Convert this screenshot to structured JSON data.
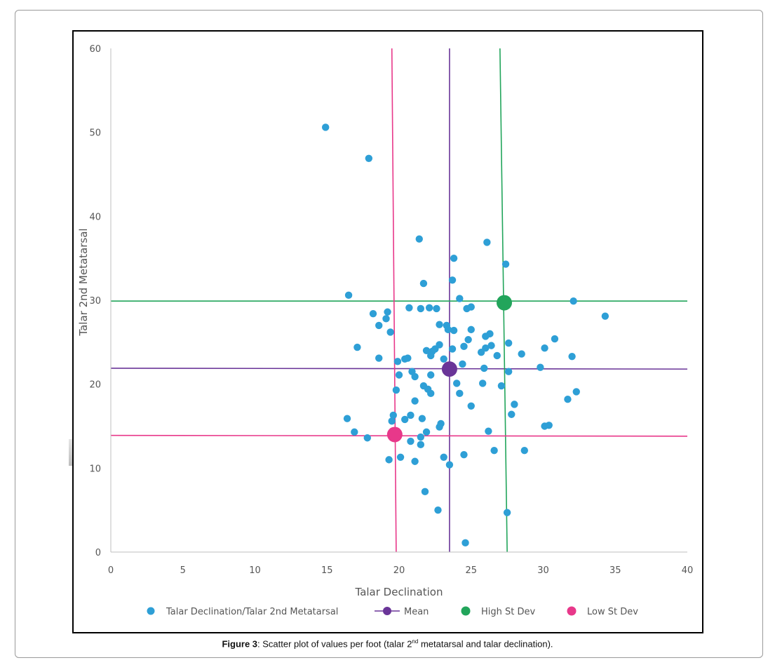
{
  "caption": {
    "label": "Figure 3",
    "text_before": ": Scatter plot of values per foot (talar 2",
    "superscript": "nd",
    "text_after": " metatarsal and talar declination)."
  },
  "chart_data": {
    "type": "scatter",
    "title": "",
    "xlabel": "Talar Declination",
    "ylabel": "Talar 2nd Metatarsal",
    "xlim": [
      0,
      40
    ],
    "ylim": [
      0,
      60
    ],
    "xticks": [
      "0",
      "5",
      "10",
      "15",
      "20",
      "25",
      "30",
      "35",
      "40"
    ],
    "yticks": [
      "0",
      "10",
      "20",
      "30",
      "40",
      "50",
      "60"
    ],
    "grid": false,
    "legend_position": "bottom",
    "legend": [
      {
        "label": "Talar Declination/Talar 2nd Metatarsal",
        "color": "#2e9fd6",
        "marker": "circle"
      },
      {
        "label": "Mean",
        "color": "#6a3598",
        "marker": "circle-line"
      },
      {
        "label": "High St Dev",
        "color": "#22a55b",
        "marker": "circle"
      },
      {
        "label": "Low St Dev",
        "color": "#e8388a",
        "marker": "circle"
      }
    ],
    "series": [
      {
        "name": "Talar Declination/Talar 2nd Metatarsal",
        "color": "#2e9fd6",
        "points": [
          [
            14.9,
            50.6
          ],
          [
            17.9,
            46.9
          ],
          [
            21.4,
            37.3
          ],
          [
            26.1,
            36.9
          ],
          [
            23.8,
            35.0
          ],
          [
            27.4,
            34.3
          ],
          [
            23.7,
            32.4
          ],
          [
            21.7,
            32.0
          ],
          [
            16.5,
            30.6
          ],
          [
            24.2,
            30.2
          ],
          [
            32.1,
            29.9
          ],
          [
            34.3,
            28.1
          ],
          [
            18.2,
            28.4
          ],
          [
            19.2,
            28.6
          ],
          [
            19.1,
            27.8
          ],
          [
            18.6,
            27.0
          ],
          [
            19.4,
            26.2
          ],
          [
            20.7,
            29.1
          ],
          [
            21.5,
            29.0
          ],
          [
            22.1,
            29.1
          ],
          [
            22.6,
            29.0
          ],
          [
            24.7,
            29.0
          ],
          [
            25.0,
            29.2
          ],
          [
            22.8,
            27.1
          ],
          [
            23.3,
            27.0
          ],
          [
            23.4,
            26.5
          ],
          [
            23.8,
            26.4
          ],
          [
            25.0,
            26.5
          ],
          [
            26.3,
            26.0
          ],
          [
            26.0,
            25.7
          ],
          [
            30.8,
            25.4
          ],
          [
            24.8,
            25.3
          ],
          [
            17.1,
            24.4
          ],
          [
            28.5,
            23.6
          ],
          [
            30.1,
            24.3
          ],
          [
            27.6,
            24.9
          ],
          [
            26.4,
            24.6
          ],
          [
            26.0,
            24.3
          ],
          [
            25.7,
            23.8
          ],
          [
            24.5,
            24.5
          ],
          [
            22.8,
            24.7
          ],
          [
            22.5,
            24.2
          ],
          [
            22.3,
            23.9
          ],
          [
            21.9,
            24.0
          ],
          [
            22.2,
            23.4
          ],
          [
            23.1,
            23.0
          ],
          [
            23.7,
            24.2
          ],
          [
            24.4,
            22.4
          ],
          [
            26.8,
            23.4
          ],
          [
            32.0,
            23.3
          ],
          [
            18.6,
            23.1
          ],
          [
            19.9,
            22.7
          ],
          [
            20.4,
            23.0
          ],
          [
            20.6,
            23.1
          ],
          [
            20.9,
            21.5
          ],
          [
            21.1,
            20.9
          ],
          [
            20.0,
            21.1
          ],
          [
            22.2,
            21.1
          ],
          [
            25.9,
            21.9
          ],
          [
            27.6,
            21.5
          ],
          [
            29.8,
            22.0
          ],
          [
            21.7,
            19.8
          ],
          [
            22.0,
            19.4
          ],
          [
            22.2,
            18.9
          ],
          [
            24.0,
            20.1
          ],
          [
            24.2,
            18.9
          ],
          [
            25.8,
            20.1
          ],
          [
            27.1,
            19.8
          ],
          [
            32.3,
            19.1
          ],
          [
            19.8,
            19.3
          ],
          [
            21.1,
            18.0
          ],
          [
            31.7,
            18.2
          ],
          [
            25.0,
            17.4
          ],
          [
            28.0,
            17.6
          ],
          [
            27.8,
            16.4
          ],
          [
            19.6,
            16.3
          ],
          [
            20.8,
            16.3
          ],
          [
            19.5,
            15.6
          ],
          [
            20.4,
            15.8
          ],
          [
            21.6,
            15.9
          ],
          [
            16.4,
            15.9
          ],
          [
            22.9,
            15.3
          ],
          [
            22.8,
            14.9
          ],
          [
            30.1,
            15.0
          ],
          [
            30.4,
            15.1
          ],
          [
            16.9,
            14.3
          ],
          [
            17.8,
            13.6
          ],
          [
            21.9,
            14.3
          ],
          [
            20.8,
            13.2
          ],
          [
            21.5,
            13.7
          ],
          [
            21.5,
            12.8
          ],
          [
            26.2,
            14.4
          ],
          [
            26.6,
            12.1
          ],
          [
            28.7,
            12.1
          ],
          [
            23.1,
            11.3
          ],
          [
            24.5,
            11.6
          ],
          [
            19.3,
            11.0
          ],
          [
            20.1,
            11.3
          ],
          [
            21.1,
            10.8
          ],
          [
            23.5,
            10.4
          ],
          [
            21.8,
            7.2
          ],
          [
            22.7,
            5.0
          ],
          [
            27.5,
            4.7
          ],
          [
            24.6,
            1.1
          ]
        ]
      },
      {
        "name": "Mean",
        "color": "#6a3598",
        "points": [
          [
            23.5,
            21.8
          ]
        ]
      },
      {
        "name": "High St Dev",
        "color": "#22a55b",
        "points": [
          [
            27.3,
            29.7
          ]
        ]
      },
      {
        "name": "Low St Dev",
        "color": "#e8388a",
        "points": [
          [
            19.7,
            14.0
          ]
        ]
      }
    ],
    "reference_lines": [
      {
        "series": "Mean",
        "color": "#6a3598",
        "orientation": "vertical",
        "from": [
          23.5,
          60
        ],
        "to": [
          23.5,
          0
        ]
      },
      {
        "series": "Mean",
        "color": "#6a3598",
        "orientation": "horizontal",
        "from": [
          0,
          21.9
        ],
        "to": [
          40,
          21.8
        ]
      },
      {
        "series": "High St Dev",
        "color": "#22a55b",
        "orientation": "vertical",
        "from": [
          27.0,
          60
        ],
        "to": [
          27.5,
          0
        ]
      },
      {
        "series": "High St Dev",
        "color": "#22a55b",
        "orientation": "horizontal",
        "from": [
          0,
          29.9
        ],
        "to": [
          40,
          29.9
        ]
      },
      {
        "series": "Low St Dev",
        "color": "#e8388a",
        "orientation": "vertical",
        "from": [
          19.5,
          60
        ],
        "to": [
          19.8,
          0
        ]
      },
      {
        "series": "Low St Dev",
        "color": "#e8388a",
        "orientation": "horizontal",
        "from": [
          0,
          13.9
        ],
        "to": [
          40,
          13.8
        ]
      }
    ]
  }
}
